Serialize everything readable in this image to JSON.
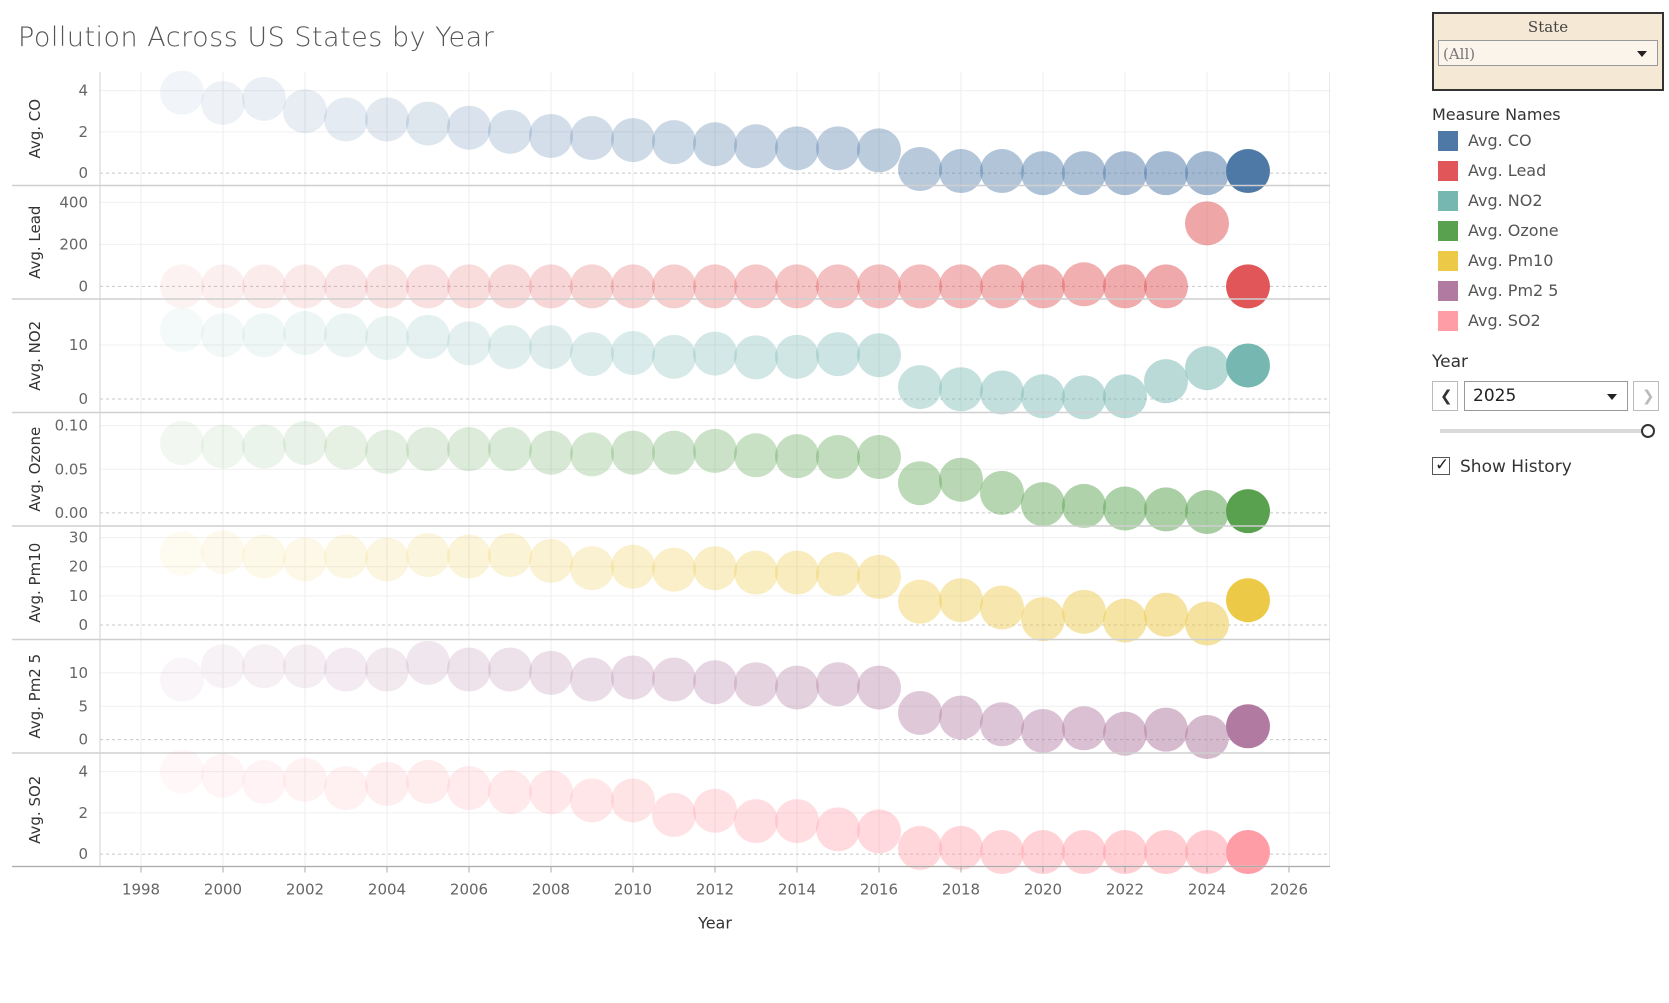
{
  "title": "Pollution Across US States by Year",
  "chart_data": {
    "type": "scatter",
    "title": "Pollution Across US States by Year",
    "xlabel": "Year",
    "xlim": [
      1997,
      2027
    ],
    "x_ticks": [
      1998,
      2000,
      2002,
      2004,
      2006,
      2008,
      2010,
      2012,
      2014,
      2016,
      2018,
      2020,
      2022,
      2024,
      2026
    ],
    "grid": true,
    "x": [
      1999,
      2000,
      2001,
      2002,
      2003,
      2004,
      2005,
      2006,
      2007,
      2008,
      2009,
      2010,
      2011,
      2012,
      2013,
      2014,
      2015,
      2016,
      2017,
      2018,
      2019,
      2020,
      2021,
      2022,
      2023,
      2024,
      2025
    ],
    "highlight_x": 2025,
    "panels": [
      {
        "name": "Avg. CO",
        "ylabel": "Avg. CO",
        "color": "#4e79a7",
        "ylim": [
          -0.6,
          4.9
        ],
        "ticks": [
          0,
          2,
          4
        ],
        "tick_labels": [
          "0",
          "2",
          "4"
        ],
        "values": [
          3.9,
          3.4,
          3.6,
          3.0,
          2.6,
          2.6,
          2.4,
          2.2,
          2.0,
          1.8,
          1.7,
          1.6,
          1.5,
          1.4,
          1.3,
          1.2,
          1.2,
          1.1,
          0.2,
          0.1,
          0.1,
          0.0,
          0.0,
          0.0,
          0.0,
          0.0,
          0.1
        ]
      },
      {
        "name": "Avg. Lead",
        "ylabel": "Avg. Lead",
        "color": "#e15759",
        "ylim": [
          -60,
          480
        ],
        "ticks": [
          0,
          200,
          400
        ],
        "tick_labels": [
          "0",
          "200",
          "400"
        ],
        "values": [
          0,
          0,
          0,
          0,
          0,
          0,
          0,
          0,
          0,
          0,
          0,
          0,
          0,
          0,
          0,
          0,
          0,
          0,
          0,
          0,
          0,
          0,
          10,
          0,
          0,
          300,
          0
        ]
      },
      {
        "name": "Avg. NO2",
        "ylabel": "Avg. NO2",
        "color": "#76b7b2",
        "ylim": [
          -2.5,
          18.5
        ],
        "ticks": [
          0,
          10
        ],
        "tick_labels": [
          "0",
          "10"
        ],
        "values": [
          12.8,
          11.8,
          11.8,
          12.2,
          11.8,
          11.3,
          11.5,
          10.3,
          9.6,
          9.6,
          8.3,
          8.5,
          7.8,
          8.4,
          7.7,
          7.8,
          8.3,
          8.1,
          2.2,
          1.8,
          1.2,
          0.5,
          0.3,
          0.5,
          3.3,
          5.7,
          6.2
        ]
      },
      {
        "name": "Avg. Ozone",
        "ylabel": "Avg. Ozone",
        "color": "#59a14f",
        "ylim": [
          -0.015,
          0.115
        ],
        "ticks": [
          0,
          0.05,
          0.1
        ],
        "tick_labels": [
          "0.00",
          "0.05",
          "0.10"
        ],
        "values": [
          0.08,
          0.076,
          0.076,
          0.08,
          0.075,
          0.07,
          0.073,
          0.073,
          0.073,
          0.069,
          0.067,
          0.069,
          0.069,
          0.071,
          0.066,
          0.065,
          0.064,
          0.064,
          0.034,
          0.038,
          0.023,
          0.01,
          0.008,
          0.005,
          0.004,
          0.001,
          0.002
        ]
      },
      {
        "name": "Avg. Pm10",
        "ylabel": "Avg. Pm10",
        "color": "#edc948",
        "ylim": [
          -5,
          34
        ],
        "ticks": [
          0,
          10,
          20,
          30
        ],
        "tick_labels": [
          "0",
          "10",
          "20",
          "30"
        ],
        "values": [
          24.5,
          25.0,
          23.5,
          22.5,
          23.5,
          22.5,
          24.0,
          23.5,
          24.0,
          22.0,
          19.5,
          20.0,
          19.0,
          19.5,
          18.0,
          18.0,
          17.5,
          16.5,
          8.0,
          8.5,
          6.0,
          2.0,
          4.5,
          1.5,
          3.5,
          0.5,
          8.5
        ]
      },
      {
        "name": "Avg. Pm2 5",
        "ylabel": "Avg. Pm2 5",
        "color": "#b07aa1",
        "ylim": [
          -2,
          15
        ],
        "ticks": [
          0,
          5,
          10
        ],
        "tick_labels": [
          "0",
          "5",
          "10"
        ],
        "values": [
          9.0,
          11.0,
          11.0,
          11.0,
          10.5,
          10.5,
          11.5,
          10.5,
          10.5,
          10.0,
          9.0,
          9.3,
          9.0,
          8.6,
          8.3,
          7.8,
          8.3,
          7.8,
          4.0,
          3.3,
          2.3,
          1.3,
          1.7,
          0.9,
          1.5,
          0.4,
          2.0
        ]
      },
      {
        "name": "Avg. SO2",
        "ylabel": "Avg. SO2",
        "color": "#ff9da7",
        "ylim": [
          -0.6,
          4.9
        ],
        "ticks": [
          0,
          2,
          4
        ],
        "tick_labels": [
          "0",
          "2",
          "4"
        ],
        "values": [
          4.0,
          3.8,
          3.5,
          3.6,
          3.2,
          3.4,
          3.5,
          3.2,
          3.0,
          3.0,
          2.6,
          2.6,
          1.9,
          2.1,
          1.6,
          1.6,
          1.2,
          1.1,
          0.3,
          0.3,
          0.1,
          0.1,
          0.1,
          0.1,
          0.1,
          0.1,
          0.1
        ]
      }
    ]
  },
  "filters": {
    "state": {
      "title": "State",
      "value": "(All)"
    }
  },
  "legend": {
    "title": "Measure Names",
    "items": [
      {
        "label": "Avg. CO",
        "color": "#4e79a7"
      },
      {
        "label": "Avg. Lead",
        "color": "#e15759"
      },
      {
        "label": "Avg. NO2",
        "color": "#76b7b2"
      },
      {
        "label": "Avg. Ozone",
        "color": "#59a14f"
      },
      {
        "label": "Avg. Pm10",
        "color": "#edc948"
      },
      {
        "label": "Avg. Pm2 5",
        "color": "#b07aa1"
      },
      {
        "label": "Avg. SO2",
        "color": "#ff9da7"
      }
    ]
  },
  "year_control": {
    "label": "Year",
    "value": "2025",
    "prev_icon": "chevron-left-icon",
    "next_icon": "chevron-right-icon",
    "slider_position": 1.0
  },
  "history": {
    "label": "Show History",
    "checked": true,
    "check_icon": "check-icon"
  }
}
